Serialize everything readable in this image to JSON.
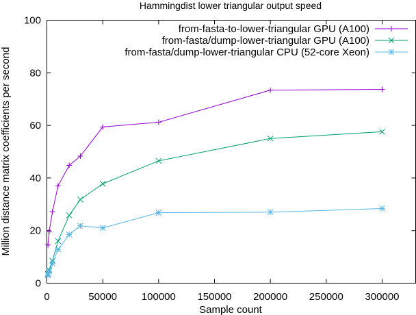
{
  "chart_data": {
    "type": "line",
    "title": "Hammingdist lower triangular output speed",
    "xlabel": "Sample count",
    "ylabel": "Million distance matrix coefficients per second",
    "xlim": [
      0,
      330000
    ],
    "ylim": [
      0,
      100
    ],
    "xticks": [
      0,
      50000,
      100000,
      150000,
      200000,
      250000,
      300000
    ],
    "yticks": [
      0,
      20,
      40,
      60,
      80,
      100
    ],
    "grid": false,
    "legend": "top-right",
    "series": [
      {
        "name": "from-fasta-to-lower-triangular GPU (A100)",
        "color": "#9400d3",
        "marker": "plus",
        "x": [
          1000,
          2000,
          5000,
          10000,
          20000,
          30000,
          50000,
          100000,
          200000,
          300000
        ],
        "y": [
          14.5,
          19.5,
          27.2,
          37.0,
          44.8,
          48.3,
          59.4,
          61.2,
          73.4,
          73.7
        ]
      },
      {
        "name": "from-fasta/dump-lower-triangular GPU (A100)",
        "color": "#009e73",
        "marker": "cross",
        "x": [
          1000,
          2000,
          5000,
          10000,
          20000,
          30000,
          50000,
          100000,
          200000,
          300000
        ],
        "y": [
          3.5,
          5.0,
          8.5,
          16.0,
          25.8,
          31.8,
          37.8,
          46.5,
          55.0,
          57.6
        ]
      },
      {
        "name": "from-fasta/dump-lower-triangular CPU (52-core Xeon)",
        "color": "#56b4e9",
        "marker": "star",
        "x": [
          1000,
          2000,
          5000,
          10000,
          20000,
          30000,
          50000,
          100000,
          200000,
          300000
        ],
        "y": [
          3.0,
          4.5,
          7.5,
          12.8,
          18.5,
          21.8,
          21.0,
          26.8,
          27.0,
          28.4
        ]
      }
    ]
  }
}
